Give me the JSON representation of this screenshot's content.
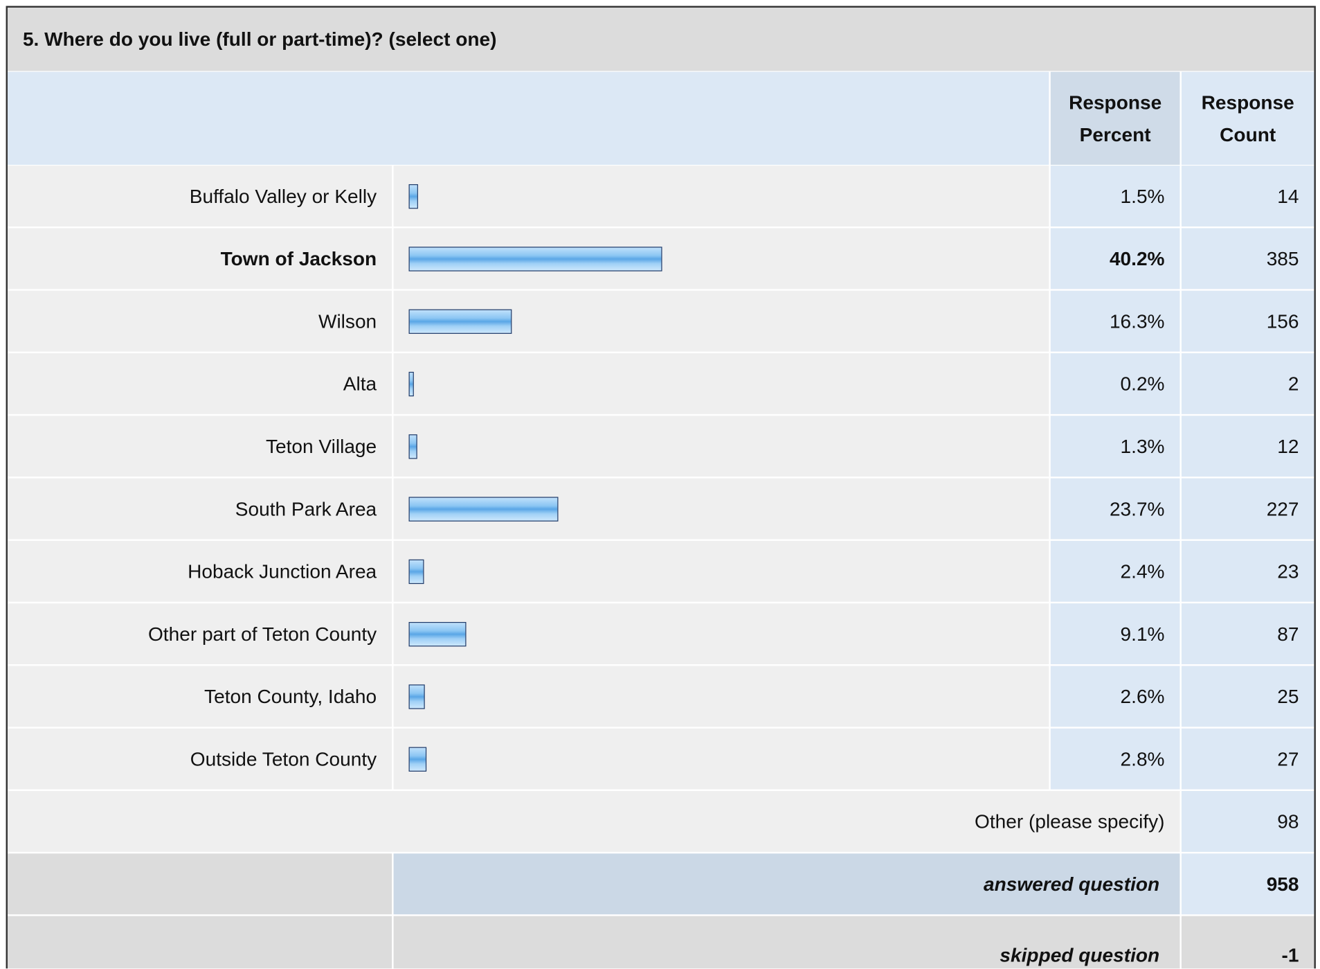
{
  "title": "5. Where do you live (full or part-time)? (select one)",
  "headers": [
    "Response Percent",
    "Response Count"
  ],
  "rows": [
    {
      "label": "Buffalo Valley or Kelly",
      "percent": 1.5,
      "percent_label": "1.5%",
      "count": 14
    },
    {
      "label": "Town of Jackson",
      "percent": 40.2,
      "percent_label": "40.2%",
      "count": 385
    },
    {
      "label": "Wilson",
      "percent": 16.3,
      "percent_label": "16.3%",
      "count": 156
    },
    {
      "label": "Alta",
      "percent": 0.2,
      "percent_label": "0.2%",
      "count": 2
    },
    {
      "label": "Teton Village",
      "percent": 1.3,
      "percent_label": "1.3%",
      "count": 12
    },
    {
      "label": "South Park Area",
      "percent": 23.7,
      "percent_label": "23.7%",
      "count": 227
    },
    {
      "label": "Hoback Junction Area",
      "percent": 2.4,
      "percent_label": "2.4%",
      "count": 23
    },
    {
      "label": "Other part of Teton County",
      "percent": 9.1,
      "percent_label": "9.1%",
      "count": 87
    },
    {
      "label": "Teton County, Idaho",
      "percent": 2.6,
      "percent_label": "2.6%",
      "count": 25
    },
    {
      "label": "Outside Teton County",
      "percent": 2.8,
      "percent_label": "2.8%",
      "count": 27
    }
  ],
  "other": {
    "label": "Other (please specify)",
    "count": 98
  },
  "answered": {
    "label": "answered question",
    "value": 958
  },
  "skipped": {
    "label": "skipped question",
    "value": -1
  }
}
